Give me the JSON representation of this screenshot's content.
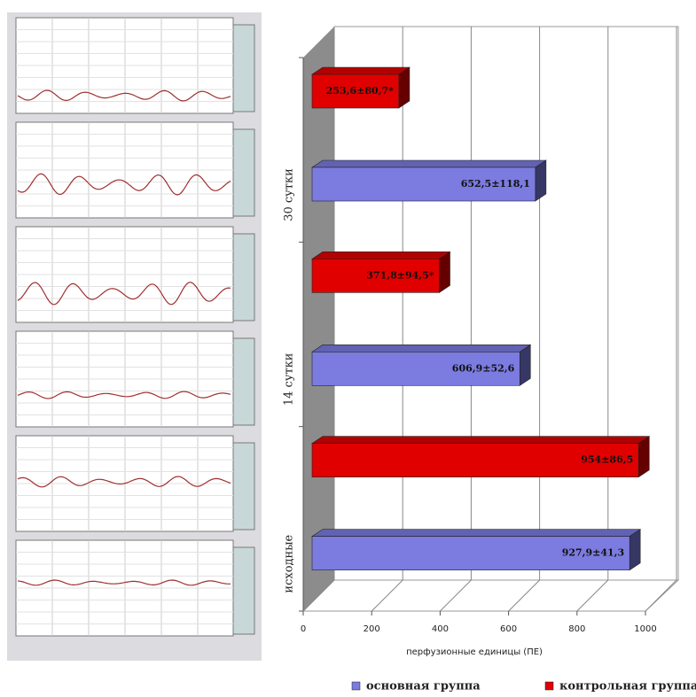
{
  "chart_data": {
    "type": "bar",
    "orientation": "horizontal",
    "x_label": "перфузионные единицы (ПЕ)",
    "categories": [
      "исходные",
      "14 сутки",
      "30 сутки"
    ],
    "series": [
      {
        "name": "основная группа",
        "color": "#7b7be0",
        "values": [
          927.9,
          606.9,
          652.5
        ],
        "value_labels": [
          "927,9±41,3",
          "606,9±52,6",
          "652,5±118,1"
        ]
      },
      {
        "name": "контрольная группа",
        "color": "#e00000",
        "values": [
          954,
          371.8,
          253.6
        ],
        "value_labels": [
          "954±86,5",
          "371,8±94,5*",
          "253,6±80,7*"
        ]
      }
    ],
    "xlim": [
      0,
      1000
    ],
    "xticks": [
      0,
      200,
      400,
      600,
      800,
      1000
    ],
    "grid": true
  }
}
